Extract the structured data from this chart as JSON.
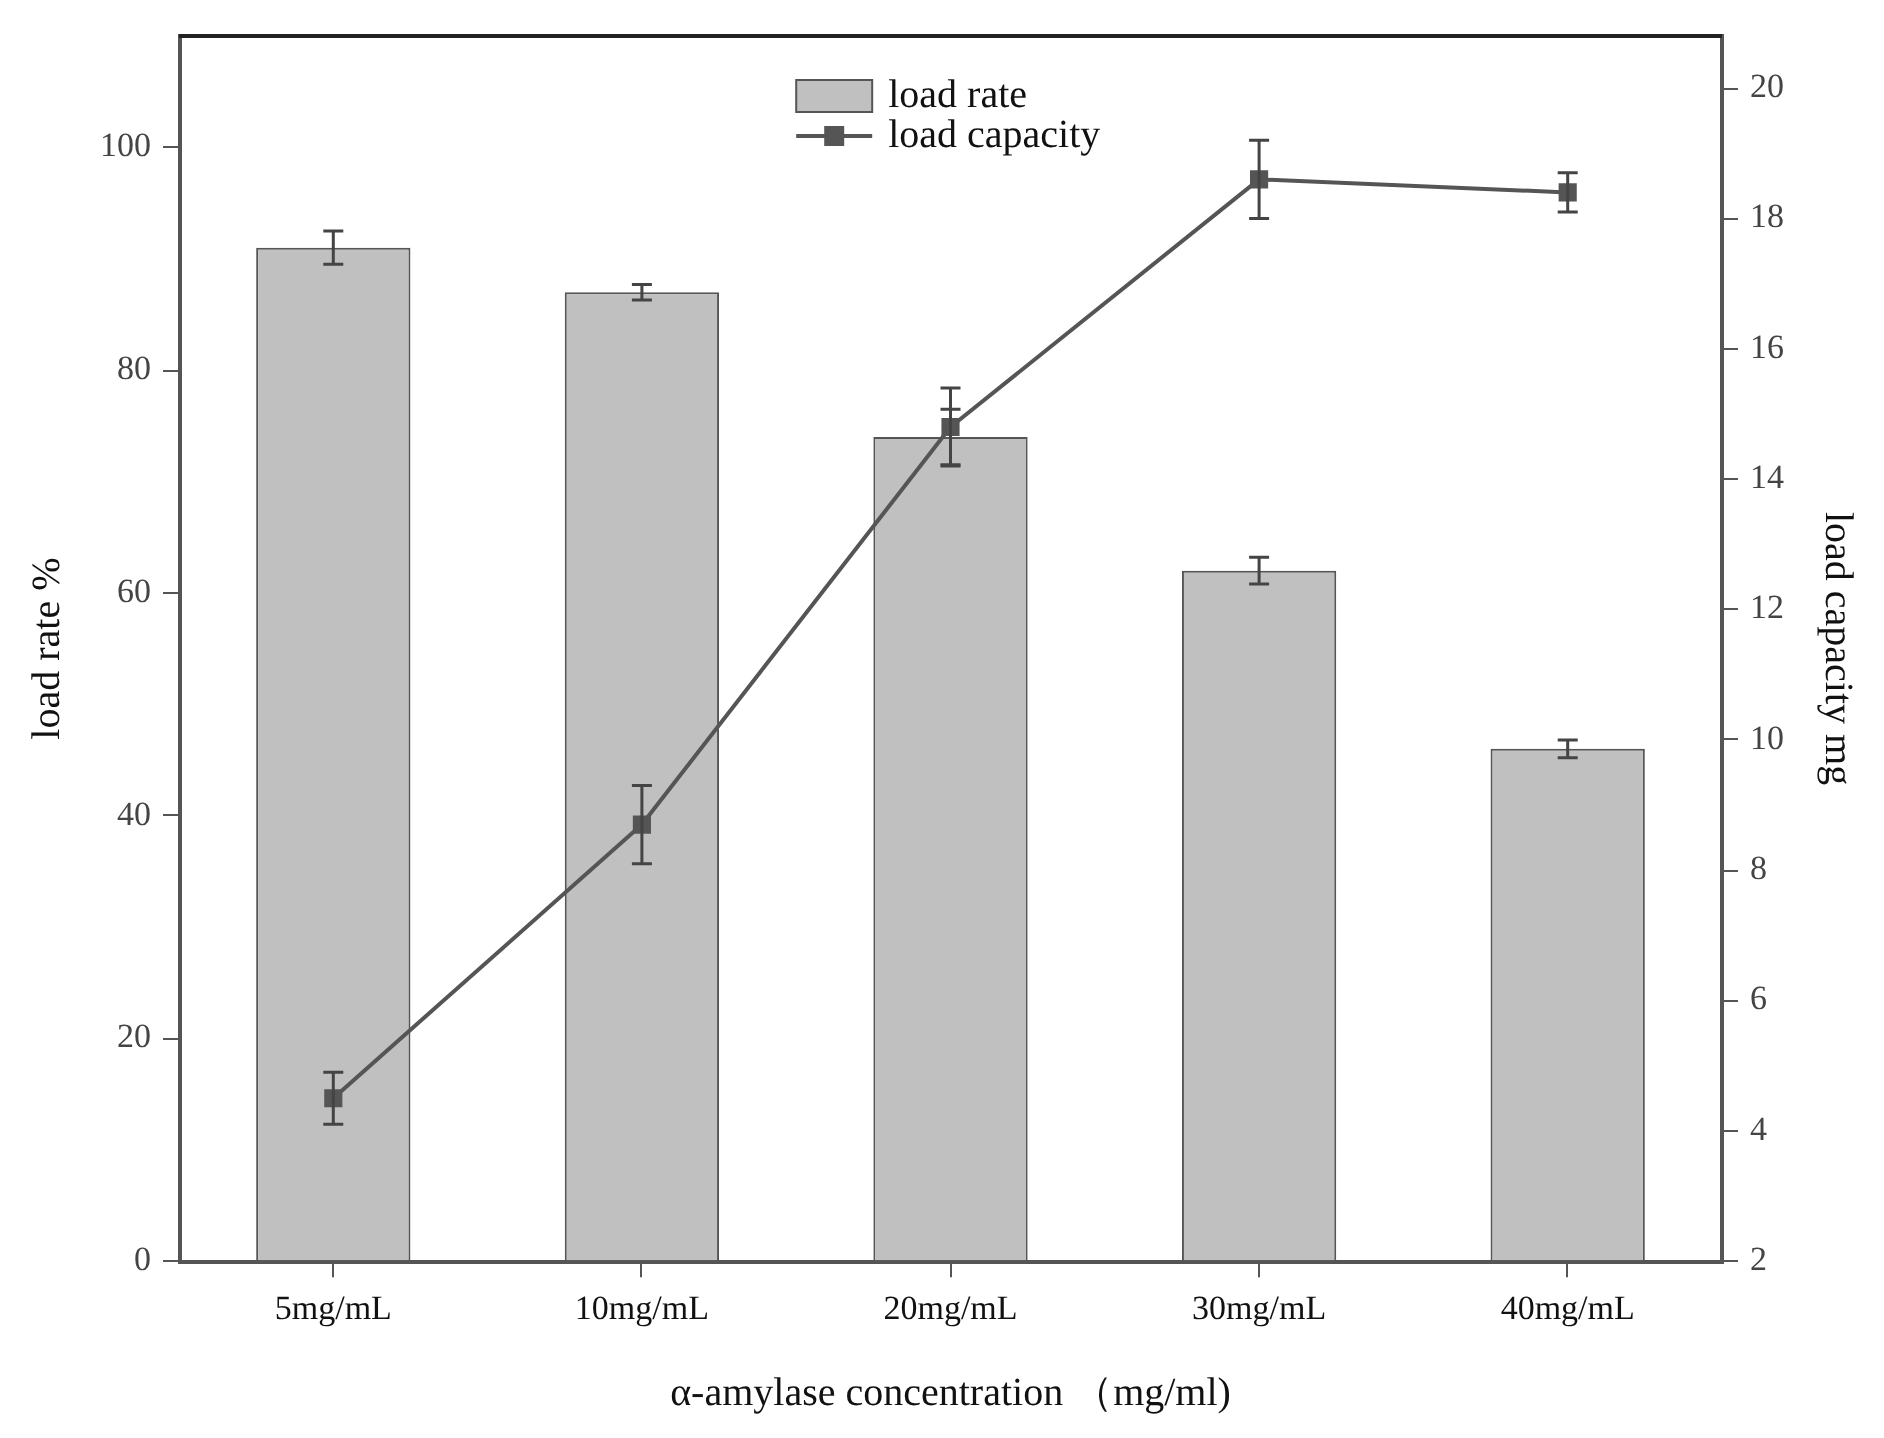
{
  "chart_data": {
    "type": "bar",
    "xlabel": "α-amylase concentration （mg/ml)",
    "ylabel": "load rate %",
    "y2label": "load capacity mg",
    "categories": [
      "5mg/mL",
      "10mg/mL",
      "20mg/mL",
      "30mg/mL",
      "40mg/mL"
    ],
    "series": [
      {
        "name": "load rate",
        "color": "#c0c0c0",
        "values": [
          91,
          87,
          74,
          62,
          46
        ],
        "errors": [
          1.5,
          0.7,
          2.5,
          1.2,
          0.8
        ]
      },
      {
        "name": "load capacity",
        "type": "line",
        "axis": "y2",
        "color": "#555555",
        "values": [
          4.5,
          8.7,
          14.8,
          18.6,
          18.4
        ],
        "errors": [
          0.4,
          0.6,
          0.6,
          0.6,
          0.3
        ],
        "marker": "square"
      }
    ],
    "ylim": [
      0,
      110
    ],
    "yticks": [
      0,
      20,
      40,
      60,
      80,
      100
    ],
    "y2lim": [
      2,
      20.8
    ],
    "y2ticks": [
      2,
      4,
      6,
      8,
      10,
      12,
      14,
      16,
      18,
      20
    ],
    "grid": false,
    "legend": "top"
  }
}
